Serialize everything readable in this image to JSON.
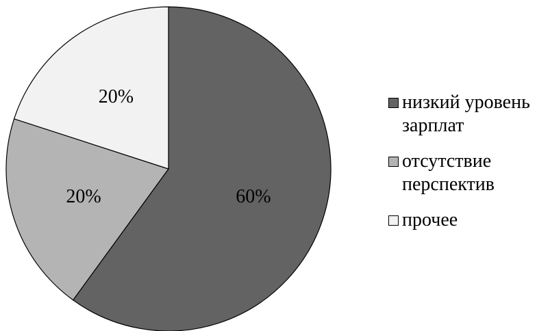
{
  "chart_data": {
    "type": "pie",
    "categories": [
      "низкий уровень зарплат",
      "отсутствие перспектив",
      "прочее"
    ],
    "values": [
      60,
      20,
      20
    ],
    "data_labels": [
      "60%",
      "20%",
      "20%"
    ],
    "colors": [
      "#636363",
      "#b4b4b4",
      "#f2f2f2"
    ],
    "start_angle_deg": 0,
    "direction": "clockwise",
    "legend_position": "right",
    "title": ""
  },
  "legend": {
    "items": [
      {
        "label": "низкий уровень зарплат",
        "color": "#636363"
      },
      {
        "label": "отсутствие перспектив",
        "color": "#b4b4b4"
      },
      {
        "label": "прочее",
        "color": "#f2f2f2"
      }
    ]
  }
}
